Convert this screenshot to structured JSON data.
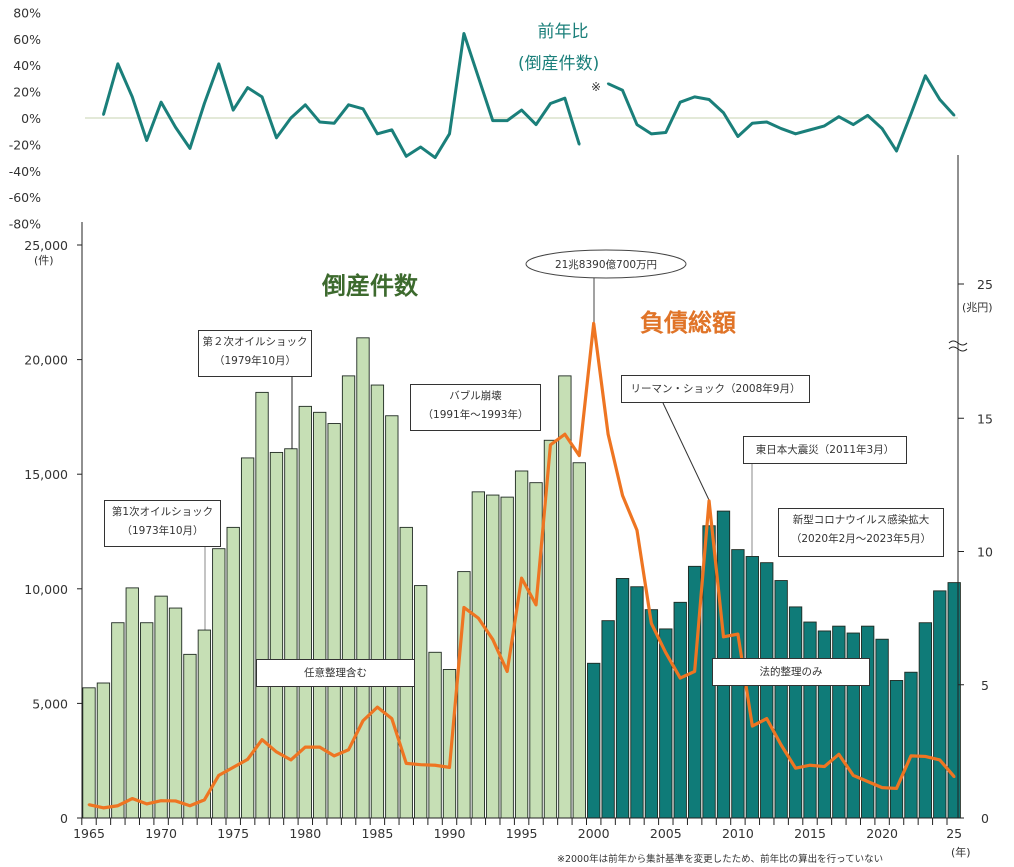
{
  "chart_data": [
    {
      "type": "line",
      "title": [
        "前年比",
        "(倒産件数)"
      ],
      "marker_note": "※",
      "ylim": [
        -80,
        80
      ],
      "y_ticks": [
        "80%",
        "60%",
        "40%",
        "20%",
        "0%",
        "-20%",
        "-40%",
        "-60%",
        "-80%"
      ],
      "y_tick_values": [
        80,
        60,
        40,
        20,
        0,
        -20,
        -40,
        -60,
        -80
      ],
      "x": [
        1965,
        1966,
        1967,
        1968,
        1969,
        1970,
        1971,
        1972,
        1973,
        1974,
        1975,
        1976,
        1977,
        1978,
        1979,
        1980,
        1981,
        1982,
        1983,
        1984,
        1985,
        1986,
        1987,
        1988,
        1989,
        1990,
        1991,
        1992,
        1993,
        1994,
        1995,
        1996,
        1997,
        1998,
        1999,
        2000,
        2001,
        2002,
        2003,
        2004,
        2005,
        2006,
        2007,
        2008,
        2009,
        2010,
        2011,
        2012,
        2013,
        2014,
        2015,
        2016,
        2017,
        2018,
        2019,
        2020,
        2021,
        2022,
        2023,
        2024,
        2025
      ],
      "values_pct": [
        null,
        2.5,
        41,
        16,
        -17,
        12,
        -7,
        -23,
        11,
        41,
        6,
        23,
        16,
        -15,
        0,
        10,
        -3,
        -4,
        10,
        7,
        -12,
        -9,
        -29,
        -22,
        -30,
        -12,
        64,
        31,
        -2,
        -2,
        6,
        -5,
        11,
        15,
        -20,
        null,
        26,
        21,
        -5,
        -12,
        -11,
        12,
        16,
        14,
        4,
        -14,
        -4,
        -3,
        -8,
        -12,
        -9,
        -6,
        1,
        -5,
        2,
        -8,
        -25,
        3,
        32,
        14,
        2
      ],
      "color": "#1a7f7a",
      "zero_line_color": "#e3e9d8"
    },
    {
      "type": "bar+line",
      "x": [
        1965,
        1966,
        1967,
        1968,
        1969,
        1970,
        1971,
        1972,
        1973,
        1974,
        1975,
        1976,
        1977,
        1978,
        1979,
        1980,
        1981,
        1982,
        1983,
        1984,
        1985,
        1986,
        1987,
        1988,
        1989,
        1990,
        1991,
        1992,
        1993,
        1994,
        1995,
        1996,
        1997,
        1998,
        1999,
        2000,
        2001,
        2002,
        2003,
        2004,
        2005,
        2006,
        2007,
        2008,
        2009,
        2010,
        2011,
        2012,
        2013,
        2014,
        2015,
        2016,
        2017,
        2018,
        2019,
        2020,
        2021,
        2022,
        2023,
        2024,
        2025
      ],
      "x_ticks": [
        "1965",
        "1970",
        "1975",
        "1980",
        "1985",
        "1990",
        "1995",
        "2000",
        "2005",
        "2010",
        "2015",
        "2020",
        "25"
      ],
      "x_tick_values": [
        1965,
        1970,
        1975,
        1980,
        1985,
        1990,
        1995,
        2000,
        2005,
        2010,
        2015,
        2020,
        2025
      ],
      "x_unit": "(年)",
      "left_axis": {
        "ticks": [
          "0",
          "5,000",
          "10,000",
          "15,000",
          "20,000",
          "25,000"
        ],
        "tick_values": [
          0,
          5000,
          10000,
          15000,
          20000,
          25000
        ],
        "unit": "(件)",
        "ylim": [
          0,
          25000
        ]
      },
      "right_axis": {
        "ticks": [
          "0",
          "5",
          "10",
          "15",
          "25"
        ],
        "tick_values": [
          0,
          5,
          10,
          15,
          25
        ],
        "unit": "(兆円)",
        "axis_break": true
      },
      "series": [
        {
          "name": "倒産件数",
          "type": "bar",
          "axis": "left",
          "values": [
            5680,
            5890,
            8520,
            10040,
            8520,
            9680,
            9160,
            7140,
            8200,
            11750,
            12680,
            15710,
            18570,
            15950,
            16110,
            17960,
            17700,
            17210,
            19290,
            20950,
            18890,
            17550,
            12680,
            10140,
            7230,
            6480,
            10750,
            14230,
            14090,
            14000,
            15140,
            14630,
            16480,
            19290,
            15500,
            6750,
            8610,
            10450,
            10090,
            9090,
            8250,
            9410,
            10980,
            12750,
            13390,
            11710,
            11410,
            11140,
            10360,
            9210,
            8550,
            8160,
            8370,
            8070,
            8370,
            7800,
            6000,
            6360,
            8520,
            9910,
            10270
          ],
          "color_before_2000": "#c6dfb5",
          "color_from_2000": "#0f7b78",
          "title_color": "#3d6a2e"
        },
        {
          "name": "負債総額",
          "type": "line",
          "axis": "right",
          "values": [
            0.5,
            0.38,
            0.46,
            0.73,
            0.53,
            0.65,
            0.64,
            0.46,
            0.68,
            1.6,
            1.9,
            2.2,
            2.94,
            2.48,
            2.18,
            2.66,
            2.66,
            2.33,
            2.56,
            3.65,
            4.16,
            3.73,
            2.05,
            2.0,
            1.98,
            1.9,
            7.9,
            7.5,
            6.7,
            5.5,
            9.0,
            8.0,
            14.0,
            14.4,
            13.6,
            21.84,
            14.4,
            12.1,
            10.8,
            7.3,
            6.2,
            5.25,
            5.5,
            11.9,
            6.8,
            6.9,
            3.45,
            3.73,
            2.74,
            1.87,
            1.98,
            1.93,
            2.39,
            1.6,
            1.37,
            1.14,
            1.11,
            2.33,
            2.31,
            2.18,
            1.55
          ],
          "color": "#ee7522"
        }
      ],
      "annotations": {
        "peak": "21兆8390億700万円",
        "oil1": [
          "第1次オイルショック",
          "（1973年10月）"
        ],
        "oil2": [
          "第２次オイルショック",
          "（1979年10月）"
        ],
        "bubble": [
          "バブル崩壊",
          "（1991年～1993年）"
        ],
        "lehman": "リーマン・ショック（2008年9月）",
        "quake": "東日本大震災（2011年3月）",
        "covid": [
          "新型コロナウイルス感染拡大",
          "（2020年2月～2023年5月）"
        ],
        "voluntary": "任意整理含む",
        "legal": "法的整理のみ"
      },
      "footnote": "※2000年は前年から集計基準を変更したため、前年比の算出を行っていない"
    }
  ]
}
